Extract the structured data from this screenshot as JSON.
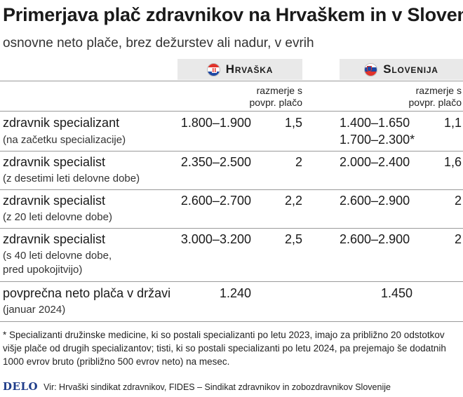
{
  "title": "Primerjava plač zdravnikov na Hrvaškem in v Sloveniji",
  "subtitle": "osnovne neto plače, brez dežurstev ali nadur, v evrih",
  "countries": {
    "hr": {
      "name": "Hrvaška",
      "flag_icon": "croatia-flag-icon"
    },
    "si": {
      "name": "Slovenija",
      "flag_icon": "slovenia-flag-icon"
    }
  },
  "ratio_header": {
    "line1": "razmerje s",
    "line2": "povpr. plačo"
  },
  "rows": [
    {
      "label": "zdravnik specializant",
      "note": "(na začetku specializacije)",
      "hr_salary": "1.800–1.900",
      "hr_ratio": "1,5",
      "si_salary": "1.400–1.650",
      "si_salary_2": "1.700–2.300*",
      "si_ratio": "1,1"
    },
    {
      "label": "zdravnik specialist",
      "note": "(z desetimi leti delovne dobe)",
      "hr_salary": "2.350–2.500",
      "hr_ratio": "2",
      "si_salary": "2.000–2.400",
      "si_ratio": "1,6"
    },
    {
      "label": "zdravnik specialist",
      "note": "(z 20 leti delovne dobe)",
      "hr_salary": "2.600–2.700",
      "hr_ratio": "2,2",
      "si_salary": "2.600–2.900",
      "si_ratio": "2"
    },
    {
      "label": "zdravnik specialist",
      "note": "(s 40 leti delovne dobe,",
      "note_2": "pred upokojitvijo)",
      "hr_salary": "3.000–3.200",
      "hr_ratio": "2,5",
      "si_salary": "2.600–2.900",
      "si_ratio": "2"
    },
    {
      "label": "povprečna neto plača v državi",
      "note": "(januar 2024)",
      "hr_salary": "1.240",
      "si_salary": "1.450"
    }
  ],
  "footnote": "* Specializanti družinske medicine, ki so postali specializanti po letu 2023, imajo za približno 20 odstotkov višje plače od drugih specializantov; tisti, ki so postali specializanti po letu 2024, pa prejemajo še dodatnih 1000 evrov bruto (približno 500 evrov neto) na mesec.",
  "source": {
    "logo": "DELO",
    "text": "Vir: Hrvaški sindikat zdravnikov, FIDES – Sindikat zdravnikov in zobozdravnikov Slovenije"
  },
  "colors": {
    "band": "#e9e9e9",
    "logo": "#1f3d8a",
    "flag_red": "#e0322b",
    "flag_blue": "#1d47a3"
  }
}
